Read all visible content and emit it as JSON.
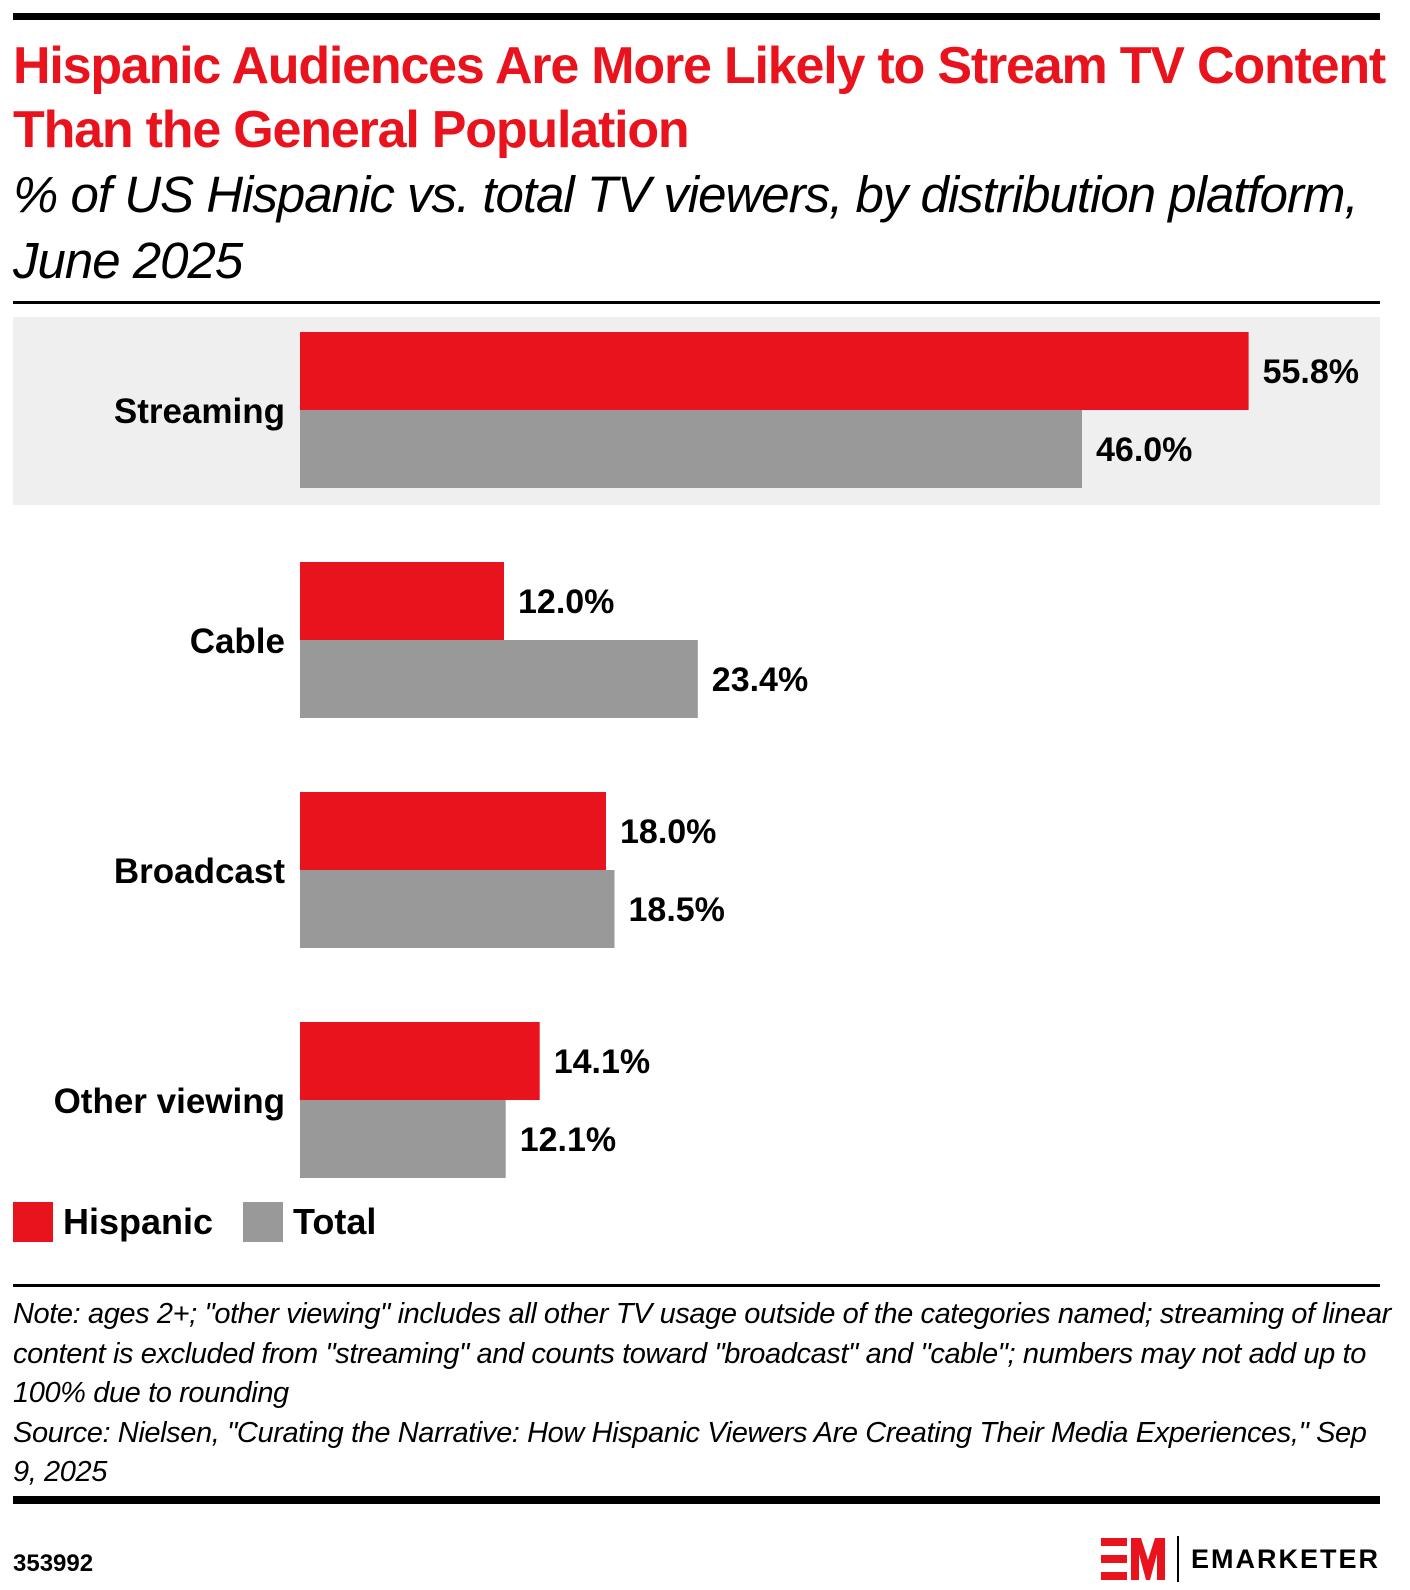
{
  "header": {
    "title": "Hispanic Audiences Are More Likely to Stream TV Content Than the General Population",
    "subtitle": "% of US Hispanic vs. total TV viewers, by distribution platform, June 2025"
  },
  "colors": {
    "hispanic": "#e8131d",
    "total": "#999999",
    "highlight_band": "#efefef",
    "title": "#e8131d"
  },
  "chart_data": {
    "type": "bar",
    "orientation": "horizontal",
    "title": "Hispanic Audiences Are More Likely to Stream TV Content Than the General Population",
    "subtitle": "% of US Hispanic vs. total TV viewers, by distribution platform, June 2025",
    "categories": [
      "Streaming",
      "Cable",
      "Broadcast",
      "Other viewing"
    ],
    "series": [
      {
        "name": "Hispanic",
        "values": [
          55.8,
          12.0,
          18.0,
          14.1
        ],
        "labels": [
          "55.8%",
          "12.0%",
          "18.0%",
          "14.1%"
        ]
      },
      {
        "name": "Total",
        "values": [
          46.0,
          23.4,
          18.5,
          12.1
        ],
        "labels": [
          "46.0%",
          "23.4%",
          "18.5%",
          "12.1%"
        ]
      }
    ],
    "highlighted_category": "Streaming",
    "xlabel": "",
    "ylabel": "",
    "xlim": [
      0,
      60
    ],
    "grid": false,
    "legend_position": "bottom-left"
  },
  "legend": [
    {
      "label": "Hispanic"
    },
    {
      "label": "Total"
    }
  ],
  "footer": {
    "note": "Note: ages 2+; \"other viewing\" includes all other TV usage outside of the categories named; streaming of linear content is excluded from \"streaming\" and counts toward \"broadcast\" and \"cable\"; numbers may not add up to 100% due to rounding",
    "source": "Source: Nielsen, \"Curating the Narrative: How Hispanic Viewers Are Creating Their Media Experiences,\" Sep 9, 2025",
    "chart_id": "353992",
    "brand": "EMARKETER"
  }
}
